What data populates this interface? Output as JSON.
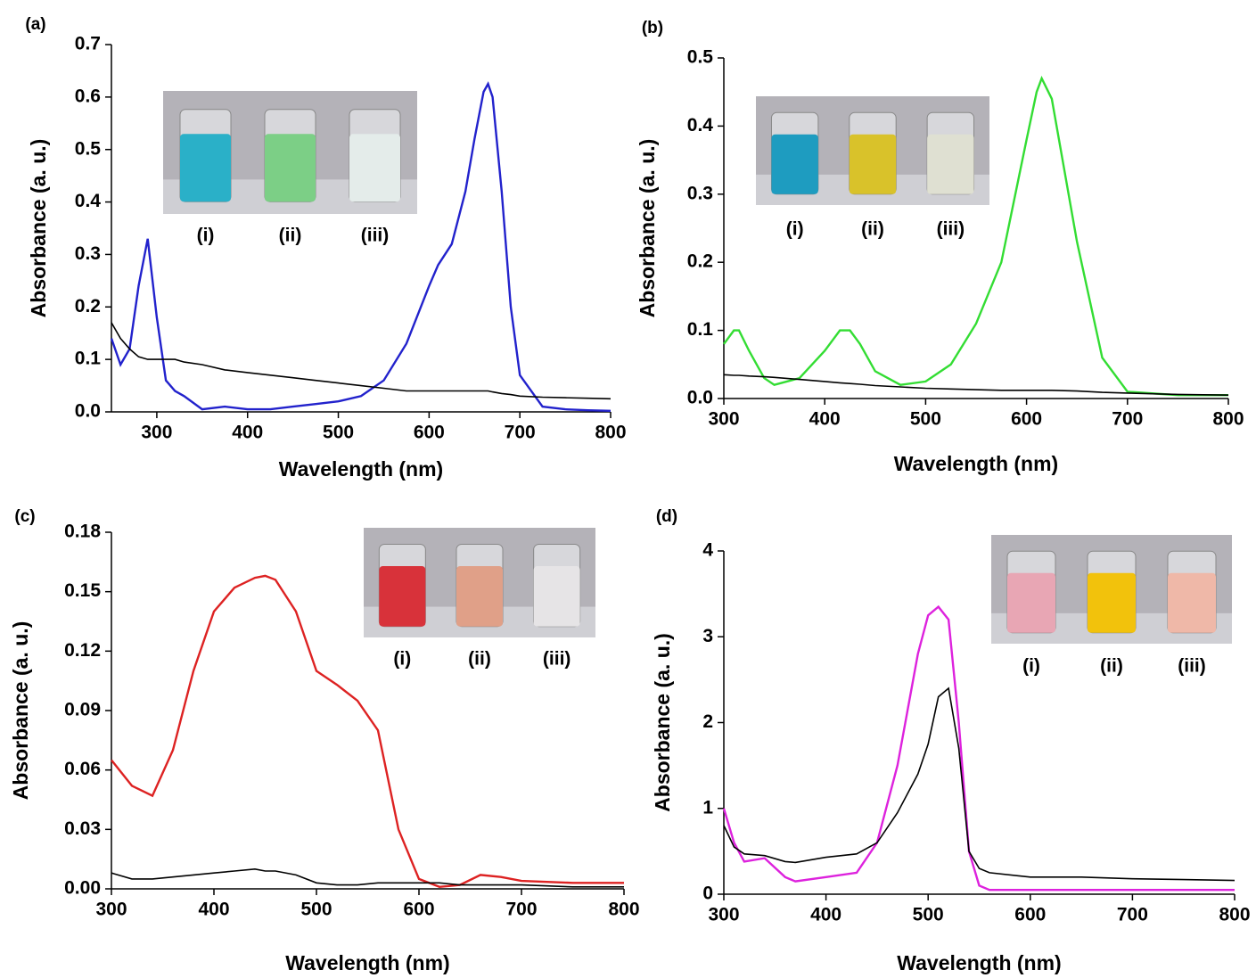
{
  "chart_data": [
    {
      "type": "line",
      "panel_label": "(a)",
      "xlabel": "Wavelength (nm)",
      "ylabel": "Absorbance (a. u.)",
      "xlim": [
        250,
        800
      ],
      "ylim": [
        0,
        0.7
      ],
      "xticks": [
        300,
        400,
        500,
        600,
        700,
        800
      ],
      "yticks": [
        {
          "value": 0,
          "label": "0.0"
        },
        0.1,
        0.2,
        0.3,
        0.4,
        0.5,
        0.6,
        0.7
      ],
      "x": [
        250,
        260,
        270,
        280,
        290,
        300,
        310,
        320,
        330,
        350,
        375,
        400,
        425,
        450,
        475,
        500,
        525,
        550,
        575,
        600,
        610,
        625,
        640,
        650,
        660,
        665,
        670,
        680,
        690,
        700,
        725,
        750,
        775,
        800
      ],
      "series": [
        {
          "color": "#2222cc",
          "values": [
            0.14,
            0.09,
            0.12,
            0.24,
            0.33,
            0.18,
            0.06,
            0.04,
            0.03,
            0.005,
            0.01,
            0.005,
            0.005,
            0.01,
            0.015,
            0.02,
            0.03,
            0.06,
            0.13,
            0.24,
            0.28,
            0.32,
            0.42,
            0.52,
            0.61,
            0.625,
            0.6,
            0.42,
            0.2,
            0.07,
            0.01,
            0.005,
            0.003,
            0.002
          ]
        },
        {
          "color": "#000000",
          "values": [
            0.17,
            0.14,
            0.12,
            0.105,
            0.1,
            0.1,
            0.1,
            0.1,
            0.095,
            0.09,
            0.08,
            0.075,
            0.07,
            0.065,
            0.06,
            0.055,
            0.05,
            0.045,
            0.04,
            0.04,
            0.04,
            0.04,
            0.04,
            0.04,
            0.04,
            0.04,
            0.038,
            0.035,
            0.033,
            0.03,
            0.028,
            0.027,
            0.026,
            0.025
          ]
        }
      ],
      "inset": {
        "labels": [
          "(i)",
          "(ii)",
          "(iii)"
        ],
        "colors": [
          "#2ab0c8",
          "#7ccf86",
          "#e4ecea"
        ]
      }
    },
    {
      "type": "line",
      "panel_label": "(b)",
      "xlabel": "Wavelength (nm)",
      "ylabel": "Absorbance (a. u.)",
      "xlim": [
        300,
        800
      ],
      "ylim": [
        0,
        0.5
      ],
      "xticks": [
        300,
        400,
        500,
        600,
        700,
        800
      ],
      "yticks": [
        {
          "value": 0,
          "label": "0.0"
        },
        0.1,
        0.2,
        0.3,
        0.4,
        0.5
      ],
      "x": [
        300,
        310,
        315,
        325,
        340,
        350,
        375,
        400,
        415,
        425,
        435,
        450,
        475,
        500,
        525,
        550,
        575,
        600,
        610,
        615,
        625,
        650,
        675,
        700,
        750,
        800
      ],
      "series": [
        {
          "color": "#33dd33",
          "values": [
            0.08,
            0.1,
            0.1,
            0.07,
            0.03,
            0.02,
            0.03,
            0.07,
            0.1,
            0.1,
            0.08,
            0.04,
            0.02,
            0.025,
            0.05,
            0.11,
            0.2,
            0.38,
            0.45,
            0.47,
            0.44,
            0.23,
            0.06,
            0.01,
            0.005,
            0.005
          ]
        },
        {
          "color": "#000000",
          "values": [
            0.035,
            0.034,
            0.034,
            0.033,
            0.032,
            0.031,
            0.028,
            0.025,
            0.023,
            0.022,
            0.021,
            0.019,
            0.017,
            0.015,
            0.014,
            0.013,
            0.012,
            0.012,
            0.012,
            0.012,
            0.012,
            0.011,
            0.009,
            0.008,
            0.006,
            0.005
          ]
        }
      ],
      "inset": {
        "labels": [
          "(i)",
          "(ii)",
          "(iii)"
        ],
        "colors": [
          "#1e9cc0",
          "#d9c22a",
          "#dfe0d2"
        ]
      }
    },
    {
      "type": "line",
      "panel_label": "(c)",
      "xlabel": "Wavelength (nm)",
      "ylabel": "Absorbance (a. u.)",
      "xlim": [
        300,
        800
      ],
      "ylim": [
        0,
        0.18
      ],
      "xticks": [
        300,
        400,
        500,
        600,
        700,
        800
      ],
      "yticks": [
        {
          "value": 0,
          "label": "0.00"
        },
        0.03,
        0.06,
        0.09,
        0.12,
        0.15,
        0.18
      ],
      "x": [
        300,
        320,
        340,
        360,
        380,
        400,
        420,
        440,
        450,
        460,
        480,
        500,
        520,
        540,
        560,
        580,
        600,
        620,
        640,
        660,
        680,
        700,
        750,
        800
      ],
      "series": [
        {
          "color": "#dd2222",
          "values": [
            0.065,
            0.052,
            0.047,
            0.07,
            0.11,
            0.14,
            0.152,
            0.157,
            0.158,
            0.156,
            0.14,
            0.11,
            0.103,
            0.095,
            0.08,
            0.03,
            0.005,
            0.001,
            0.002,
            0.007,
            0.006,
            0.004,
            0.003,
            0.003
          ]
        },
        {
          "color": "#000000",
          "values": [
            0.008,
            0.005,
            0.005,
            0.006,
            0.007,
            0.008,
            0.009,
            0.01,
            0.009,
            0.009,
            0.007,
            0.003,
            0.002,
            0.002,
            0.003,
            0.003,
            0.003,
            0.003,
            0.002,
            0.002,
            0.002,
            0.002,
            0.001,
            0.001
          ]
        }
      ],
      "inset": {
        "labels": [
          "(i)",
          "(ii)",
          "(iii)"
        ],
        "colors": [
          "#d8323a",
          "#e0a088",
          "#e6e4e6"
        ]
      }
    },
    {
      "type": "line",
      "panel_label": "(d)",
      "xlabel": "Wavelength (nm)",
      "ylabel": "Absorbance (a. u.)",
      "xlim": [
        300,
        800
      ],
      "ylim": [
        0,
        4
      ],
      "xticks": [
        300,
        400,
        500,
        600,
        700,
        800
      ],
      "yticks": [
        0,
        1,
        2,
        3,
        4
      ],
      "x": [
        300,
        310,
        320,
        340,
        360,
        370,
        400,
        430,
        450,
        470,
        490,
        500,
        510,
        520,
        530,
        540,
        550,
        560,
        600,
        650,
        700,
        750,
        800
      ],
      "series": [
        {
          "color": "#dd22dd",
          "values": [
            1.0,
            0.6,
            0.38,
            0.42,
            0.2,
            0.15,
            0.2,
            0.25,
            0.6,
            1.5,
            2.8,
            3.25,
            3.35,
            3.2,
            2.0,
            0.5,
            0.1,
            0.05,
            0.05,
            0.05,
            0.05,
            0.05,
            0.05
          ]
        },
        {
          "color": "#000000",
          "values": [
            0.8,
            0.55,
            0.47,
            0.45,
            0.38,
            0.37,
            0.43,
            0.47,
            0.6,
            0.95,
            1.4,
            1.75,
            2.3,
            2.4,
            1.7,
            0.5,
            0.3,
            0.25,
            0.2,
            0.2,
            0.18,
            0.17,
            0.16
          ]
        }
      ],
      "inset": {
        "labels": [
          "(i)",
          "(ii)",
          "(iii)"
        ],
        "colors": [
          "#e8a6b4",
          "#f2c20c",
          "#efb8a8"
        ]
      }
    }
  ]
}
